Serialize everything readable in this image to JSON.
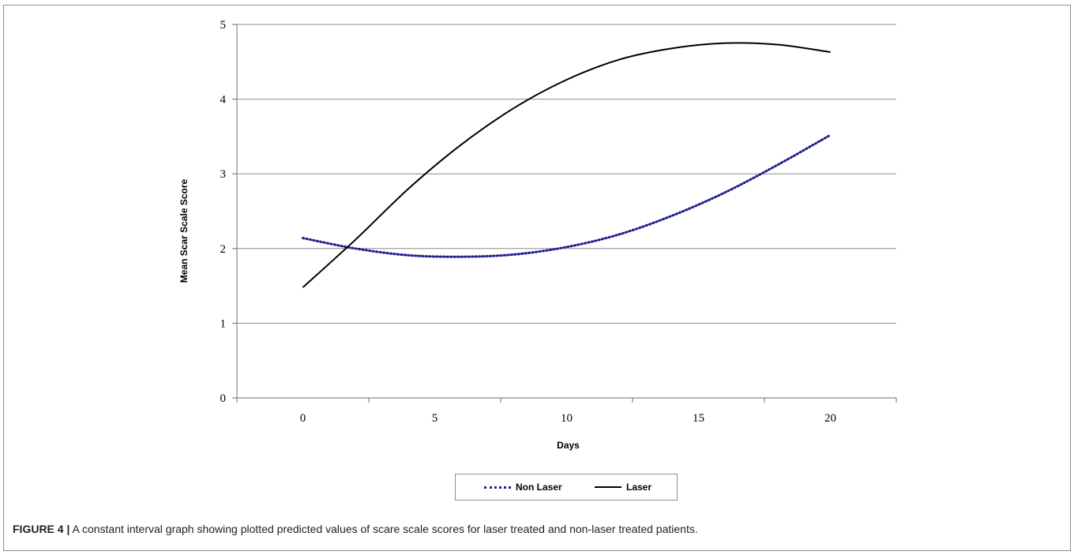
{
  "chart_data": {
    "type": "line",
    "xlabel": "Days",
    "ylabel": "Mean Scar Scale Score",
    "xlim": [
      -2.5,
      22.5
    ],
    "ylim": [
      0,
      5
    ],
    "xticks": [
      0,
      5,
      10,
      15,
      20
    ],
    "yticks": [
      0,
      1,
      2,
      3,
      4,
      5
    ],
    "grid": "horizontal",
    "legend_position": "bottom",
    "series": [
      {
        "name": "Non Laser",
        "style": "dotted",
        "color": "#1f1f8f",
        "x": [
          0,
          2,
          4,
          6,
          8,
          10,
          12,
          14,
          16,
          18,
          20
        ],
        "y": [
          2.14,
          2.0,
          1.91,
          1.89,
          1.92,
          2.02,
          2.19,
          2.44,
          2.75,
          3.12,
          3.52
        ]
      },
      {
        "name": "Laser",
        "style": "solid",
        "color": "#000000",
        "x": [
          0,
          2,
          4,
          6,
          8,
          10,
          12,
          14,
          16,
          18,
          20
        ],
        "y": [
          1.48,
          2.12,
          2.8,
          3.39,
          3.88,
          4.26,
          4.53,
          4.68,
          4.75,
          4.73,
          4.63
        ]
      }
    ]
  },
  "caption": {
    "label": "FIGURE 4 |",
    "text": " A constant interval graph showing plotted predicted values of scare scale scores for laser treated and non-laser treated patients."
  }
}
